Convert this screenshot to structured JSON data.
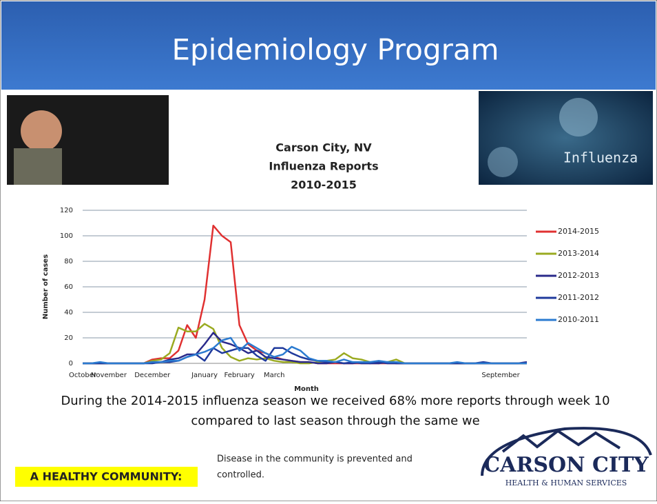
{
  "header": {
    "title": "Epidemiology Program"
  },
  "images": {
    "right_caption": "Influenza"
  },
  "chart_data": {
    "type": "line",
    "title": [
      "Carson City, NV",
      "Influenza Reports",
      "2010-2015"
    ],
    "x_label": "Month",
    "y_label": "Number of cases",
    "categories": [
      "October",
      null,
      null,
      "November",
      null,
      null,
      null,
      null,
      "December",
      null,
      null,
      null,
      null,
      null,
      "January",
      null,
      null,
      null,
      "February",
      null,
      null,
      null,
      "March",
      null,
      null,
      null,
      null,
      null,
      null,
      null,
      null,
      null,
      null,
      null,
      null,
      null,
      null,
      null,
      null,
      null,
      null,
      null,
      null,
      null,
      null,
      null,
      null,
      null,
      "September",
      null,
      null,
      null
    ],
    "ylim": [
      0,
      120
    ],
    "yticks": [
      0,
      20,
      40,
      60,
      80,
      100,
      120
    ],
    "grid": true,
    "legend": "right",
    "series": [
      {
        "name": "2014-2015",
        "color": "#e03030",
        "values": [
          0,
          0,
          0,
          0,
          0,
          0,
          0,
          0,
          3,
          4,
          4,
          10,
          30,
          20,
          50,
          108,
          100,
          95,
          30,
          15,
          10,
          8,
          5,
          3,
          2,
          1,
          1,
          0,
          0,
          0,
          0,
          0,
          0,
          0,
          0,
          0,
          0,
          0,
          0,
          0,
          0,
          0,
          0,
          0,
          0,
          0,
          0,
          0,
          0,
          0,
          0,
          0
        ]
      },
      {
        "name": "2013-2014",
        "color": "#9aaa20",
        "values": [
          0,
          0,
          0,
          0,
          0,
          0,
          0,
          0,
          2,
          3,
          8,
          28,
          25,
          25,
          31,
          27,
          12,
          5,
          2,
          4,
          3,
          4,
          2,
          1,
          1,
          0,
          0,
          1,
          2,
          3,
          8,
          4,
          3,
          1,
          0,
          1,
          3,
          0,
          0,
          0,
          0,
          0,
          0,
          0,
          0,
          0,
          0,
          0,
          0,
          0,
          0,
          0
        ]
      },
      {
        "name": "2012-2013",
        "color": "#2a2a8a",
        "values": [
          0,
          0,
          0,
          0,
          0,
          0,
          0,
          0,
          1,
          1,
          3,
          4,
          7,
          7,
          15,
          24,
          17,
          15,
          12,
          8,
          10,
          5,
          4,
          3,
          2,
          1,
          1,
          0,
          0,
          1,
          0,
          0,
          1,
          0,
          0,
          1,
          0,
          0,
          0,
          0,
          0,
          0,
          0,
          0,
          0,
          0,
          0,
          0,
          0,
          0,
          0,
          1
        ]
      },
      {
        "name": "2011-2012",
        "color": "#1f3a9c",
        "values": [
          0,
          0,
          0,
          0,
          0,
          0,
          0,
          0,
          0,
          1,
          1,
          2,
          5,
          7,
          2,
          12,
          8,
          10,
          12,
          12,
          6,
          2,
          12,
          12,
          8,
          5,
          3,
          2,
          1,
          1,
          0,
          1,
          0,
          0,
          1,
          0,
          0,
          0,
          0,
          0,
          0,
          0,
          0,
          0,
          0,
          0,
          1,
          0,
          0,
          0,
          0,
          0
        ]
      },
      {
        "name": "2010-2011",
        "color": "#2b7bd0",
        "values": [
          0,
          0,
          1,
          0,
          0,
          0,
          0,
          0,
          1,
          1,
          2,
          2,
          5,
          7,
          9,
          12,
          18,
          20,
          10,
          16,
          12,
          8,
          5,
          7,
          13,
          10,
          4,
          2,
          2,
          1,
          3,
          1,
          1,
          1,
          2,
          1,
          1,
          0,
          0,
          0,
          0,
          0,
          0,
          1,
          0,
          0,
          0,
          0,
          0,
          0,
          0,
          0
        ]
      }
    ]
  },
  "body": {
    "lines": [
      "During the 2014-2015 influenza season we received 68% more reports through week 10",
      "compared to last season through the same we"
    ]
  },
  "footer": {
    "badge": "A HEALTHY COMMUNITY:",
    "text": [
      "Disease in the community is prevented and",
      "controlled."
    ],
    "logo_name": "CARSON CITY",
    "logo_sub": "HEALTH & HUMAN SERVICES"
  }
}
